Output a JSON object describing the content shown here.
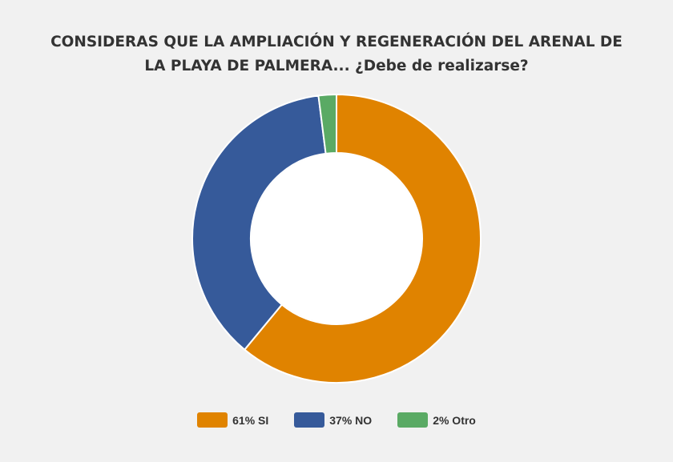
{
  "chart_data": {
    "type": "pie",
    "variant": "donut",
    "title_lines": [
      "CONSIDERAS QUE LA AMPLIACIÓN Y REGENERACIÓN DEL ARENAL DE",
      "LA PLAYA DE PALMERA... ¿Debe de realizarse?"
    ],
    "slices": [
      {
        "label": "SI",
        "value": 61,
        "color": "#e08300"
      },
      {
        "label": "NO",
        "value": 37,
        "color": "#365a9a"
      },
      {
        "label": "Otro",
        "value": 2,
        "color": "#5aaa64"
      }
    ],
    "legend": {
      "placement": "bottom",
      "items": [
        "61% SI",
        "37% NO",
        "2% Otro"
      ]
    }
  }
}
